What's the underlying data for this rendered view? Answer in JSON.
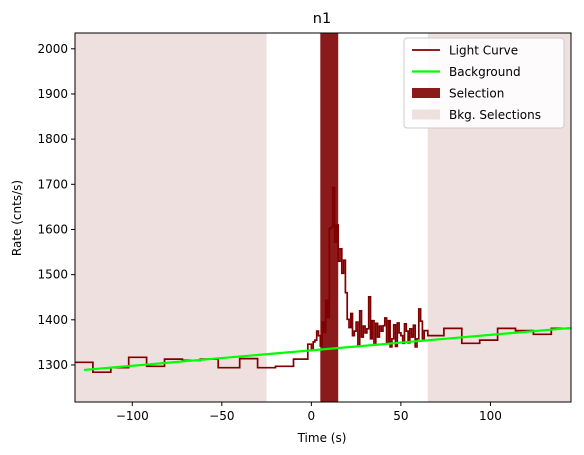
{
  "chart_data": {
    "type": "line",
    "title": "n1",
    "xlabel": "Time (s)",
    "ylabel": "Rate (cnts/s)",
    "xlim": [
      -132,
      145
    ],
    "ylim": [
      1218,
      2035
    ],
    "x_ticks": [
      -100,
      -50,
      0,
      50,
      100
    ],
    "x_tick_labels": [
      "−100",
      "−50",
      "0",
      "50",
      "100"
    ],
    "y_ticks": [
      1300,
      1400,
      1500,
      1600,
      1700,
      1800,
      1900,
      2000
    ],
    "y_tick_labels": [
      "1300",
      "1400",
      "1500",
      "1600",
      "1700",
      "1800",
      "1900",
      "2000"
    ],
    "grid": false,
    "legend_position": "top-right",
    "legend": [
      {
        "label": "Light Curve",
        "kind": "line",
        "color": "#800000"
      },
      {
        "label": "Background",
        "kind": "line",
        "color": "#00ff00"
      },
      {
        "label": "Selection",
        "kind": "patch",
        "color": "#8b1a1a"
      },
      {
        "label": "Bkg. Selections",
        "kind": "patch",
        "color": "#efe0e0"
      }
    ],
    "series": [
      {
        "name": "Light Curve",
        "style": "step",
        "color": "#800000",
        "x": [
          -132,
          -122,
          -112,
          -102,
          -92,
          -82,
          -72,
          -62,
          -52,
          -40,
          -30,
          -20,
          -10,
          -2,
          0,
          1,
          2,
          3,
          4,
          5,
          6,
          7,
          8,
          9,
          10,
          11,
          12,
          13,
          14,
          15,
          16,
          17,
          18,
          19,
          20,
          21,
          22,
          23,
          24,
          25,
          26,
          27,
          28,
          29,
          30,
          31,
          32,
          33,
          34,
          35,
          36,
          37,
          38,
          39,
          40,
          41,
          42,
          43,
          44,
          45,
          46,
          47,
          48,
          49,
          50,
          51,
          52,
          53,
          54,
          55,
          56,
          57,
          58,
          59,
          60,
          61,
          62,
          63,
          65,
          74,
          84,
          94,
          104,
          114,
          124,
          134
        ],
        "y": [
          1306,
          1284,
          1294,
          1317,
          1297,
          1313,
          1310,
          1313,
          1294,
          1314,
          1294,
          1297,
          1313,
          1346,
          1333,
          1351,
          1355,
          1375,
          1365,
          1342,
          1395,
          1372,
          1443,
          1405,
          1602,
          1605,
          1693,
          1572,
          1610,
          1530,
          1557,
          1503,
          1532,
          1460,
          1401,
          1383,
          1414,
          1365,
          1375,
          1395,
          1341,
          1420,
          1362,
          1386,
          1371,
          1380,
          1451,
          1358,
          1398,
          1345,
          1392,
          1362,
          1386,
          1375,
          1387,
          1404,
          1349,
          1398,
          1340,
          1358,
          1389,
          1341,
          1393,
          1371,
          1365,
          1348,
          1391,
          1375,
          1349,
          1380,
          1362,
          1388,
          1340,
          1358,
          1424,
          1397,
          1358,
          1376,
          1365,
          1381,
          1348,
          1355,
          1381,
          1376,
          1368,
          1381
        ],
        "x_end": 145
      },
      {
        "name": "Background",
        "style": "line",
        "color": "#00ff00",
        "x": [
          -127,
          145
        ],
        "y": [
          1289,
          1382
        ]
      }
    ],
    "selection": {
      "label": "Selection",
      "color": "#8b1a1a",
      "ranges": [
        [
          5,
          15
        ]
      ]
    },
    "bkg_selections": {
      "label": "Bkg. Selections",
      "color": "#efe0e0",
      "ranges": [
        [
          -132,
          -25
        ],
        [
          65,
          145
        ]
      ]
    }
  }
}
